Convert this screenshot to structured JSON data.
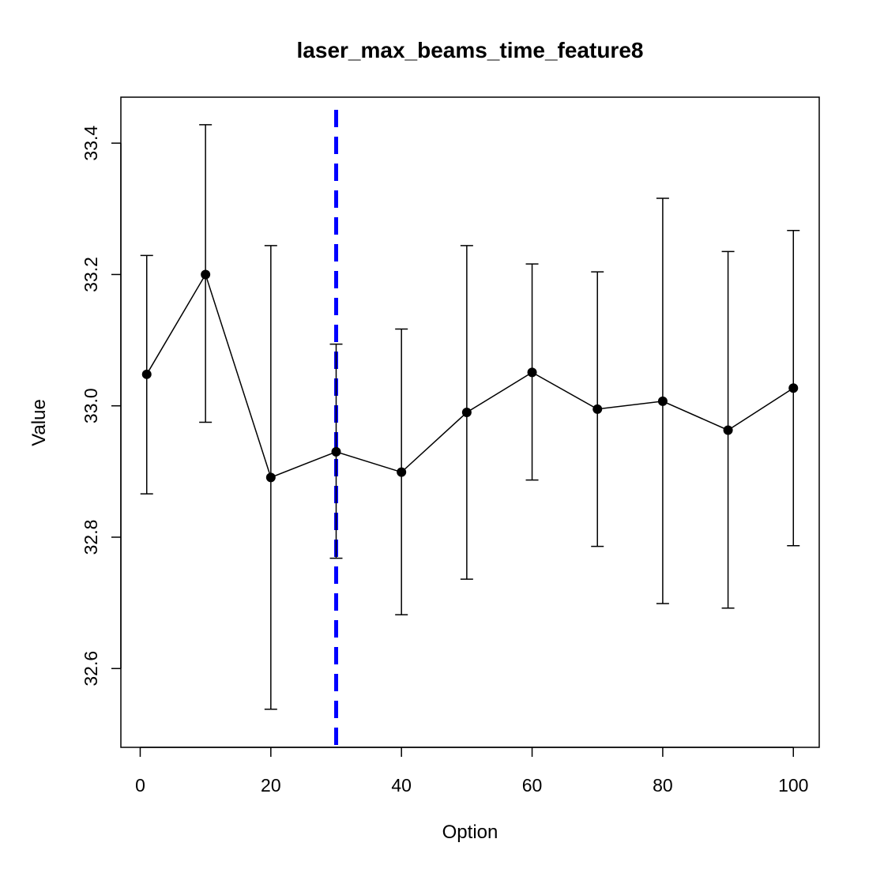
{
  "chart_data": {
    "type": "line",
    "title": "laser_max_beams_time_feature8",
    "xlabel": "Option",
    "ylabel": "Value",
    "xlim": [
      -2.96,
      103.96
    ],
    "ylim": [
      32.48,
      33.47
    ],
    "x_ticks": [
      "0",
      "20",
      "40",
      "60",
      "80",
      "100"
    ],
    "y_ticks": [
      "32.6",
      "32.8",
      "33.0",
      "33.2",
      "33.4"
    ],
    "grid": false,
    "series": [
      {
        "x": [
          1,
          10,
          20,
          30,
          40,
          50,
          60,
          70,
          80,
          90,
          100
        ],
        "y": [
          33.048,
          33.2,
          32.891,
          32.93,
          32.899,
          32.99,
          33.051,
          32.995,
          33.007,
          32.963,
          33.027
        ],
        "error_low": [
          32.866,
          32.975,
          32.538,
          32.768,
          32.682,
          32.736,
          32.887,
          32.786,
          32.699,
          32.692,
          32.787
        ],
        "error_high": [
          33.229,
          33.428,
          33.244,
          33.094,
          33.117,
          33.244,
          33.216,
          33.204,
          33.316,
          33.235,
          33.267
        ],
        "color": "#000000"
      }
    ],
    "reference_line": {
      "axis": "x",
      "value": 30,
      "color": "#0000ff",
      "style": "dashed"
    }
  }
}
